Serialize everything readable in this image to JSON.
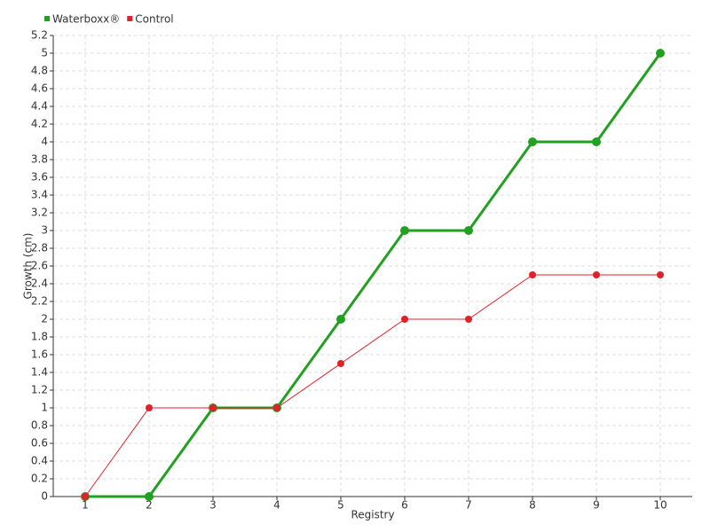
{
  "chart_data": {
    "type": "line",
    "x": [
      1,
      2,
      3,
      4,
      5,
      6,
      7,
      8,
      9,
      10
    ],
    "series": [
      {
        "name": "Waterboxx®",
        "color": "#22a022",
        "values": [
          0,
          0,
          1,
          1,
          2,
          3,
          3,
          4,
          4,
          5
        ]
      },
      {
        "name": "Control",
        "color": "#e0202a",
        "values": [
          0,
          1,
          1,
          1,
          1.5,
          2,
          2,
          2.5,
          2.5,
          2.5
        ]
      }
    ],
    "xlabel": "Registry",
    "ylabel": "Growth (cm)",
    "xlim": [
      0.5,
      10.5
    ],
    "xticks": [
      1,
      2,
      3,
      4,
      5,
      6,
      7,
      8,
      9,
      10
    ],
    "ylim": [
      0,
      5.2
    ],
    "yticks": [
      0,
      0.2,
      0.4,
      0.6,
      0.8,
      1,
      1.2,
      1.4,
      1.6,
      1.8,
      2,
      2.2,
      2.4,
      2.6,
      2.8,
      3,
      3.2,
      3.4,
      3.6,
      3.8,
      4,
      4.2,
      4.4,
      4.6,
      4.8,
      5,
      5.2
    ],
    "grid": true,
    "legend": "top-left"
  }
}
